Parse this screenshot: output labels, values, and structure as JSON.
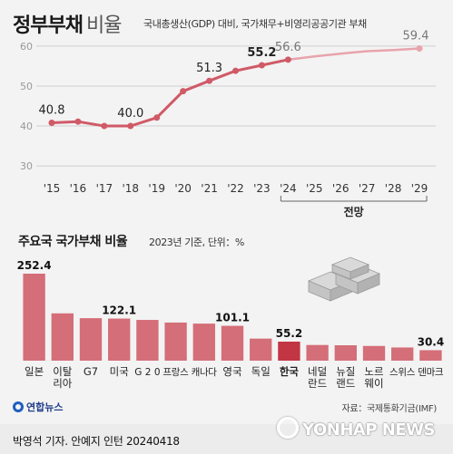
{
  "header": {
    "title_bold": "정부부채",
    "title_light": "비율",
    "subtitle": "국내총생산(GDP) 대비, 국가채무+비영리공공기관 부채"
  },
  "chart_data": [
    {
      "type": "line",
      "x": [
        "'15",
        "'16",
        "'17",
        "'18",
        "'19",
        "'20",
        "'21",
        "'22",
        "'23",
        "'24",
        "'25",
        "'26",
        "'27",
        "'28",
        "'29"
      ],
      "series": [
        {
          "values": [
            40.8,
            41.1,
            40.0,
            40.0,
            42.1,
            48.7,
            51.3,
            53.8,
            55.2,
            56.6,
            57.4,
            58.1,
            58.7,
            59.0,
            59.4
          ]
        }
      ],
      "labeled_points": [
        {
          "index": 0,
          "label": "40.8"
        },
        {
          "index": 3,
          "label": "40.0"
        },
        {
          "index": 6,
          "label": "51.3"
        },
        {
          "index": 8,
          "label": "55.2"
        },
        {
          "index": 9,
          "label": "56.6"
        },
        {
          "index": 14,
          "label": "59.4"
        }
      ],
      "forecast_start_index": 9,
      "forecast_label": "전망",
      "yticks": [
        "30",
        "40",
        "50",
        "60"
      ],
      "ylim": [
        28,
        62
      ],
      "grid": true,
      "colors": {
        "actual": "#d05a67",
        "forecast": "#e8a4ad",
        "grid": "#cfcfcf"
      }
    },
    {
      "type": "bar",
      "title": "주요국 국가부채 비율",
      "subtitle": "2023년 기준, 단위：%",
      "categories": [
        "일본",
        "이탈\n리아",
        "G7",
        "미국",
        "G20",
        "프랑스",
        "캐나다",
        "영국",
        "독일",
        "한국",
        "네덜\n란드",
        "뉴질\n랜드",
        "노르\n웨이",
        "스위스",
        "덴마크"
      ],
      "values": [
        252.4,
        137.3,
        123.3,
        122.1,
        118.2,
        110.6,
        107.5,
        101.1,
        64.0,
        55.2,
        45.5,
        44.7,
        42.7,
        38.3,
        30.4
      ],
      "value_labels": {
        "0": "252.4",
        "3": "122.1",
        "7": "101.1",
        "9": "55.2",
        "14": "30.4"
      },
      "highlight_index": 9,
      "colors": {
        "bar": "#d46e78",
        "highlight": "#c23543"
      }
    }
  ],
  "source": "자료：국제통화기금(IMF)",
  "logo": "연합뉴스",
  "credit": "박영석 기자. 안예지 인턴 20240418",
  "watermark": "YONHAP NEWS"
}
